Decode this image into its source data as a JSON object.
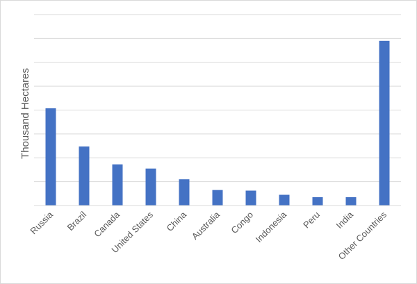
{
  "chart_data": {
    "type": "bar",
    "title": "",
    "xlabel": "",
    "ylabel": "Thousand Hectares",
    "categories": [
      "Russia",
      "Brazil",
      "Canada",
      "United States",
      "China",
      "Australia",
      "Congo",
      "Indonesia",
      "Peru",
      "India",
      "Other Countries"
    ],
    "series": [
      {
        "values": [
          8.15,
          4.95,
          3.45,
          3.1,
          2.2,
          1.3,
          1.25,
          0.9,
          0.7,
          0.7,
          13.8
        ],
        "color": "#4472c4"
      }
    ],
    "ylim": [
      0,
      16
    ],
    "ytick_step": 2,
    "ytick_labels_shown": false,
    "grid": true,
    "legend": "none"
  }
}
